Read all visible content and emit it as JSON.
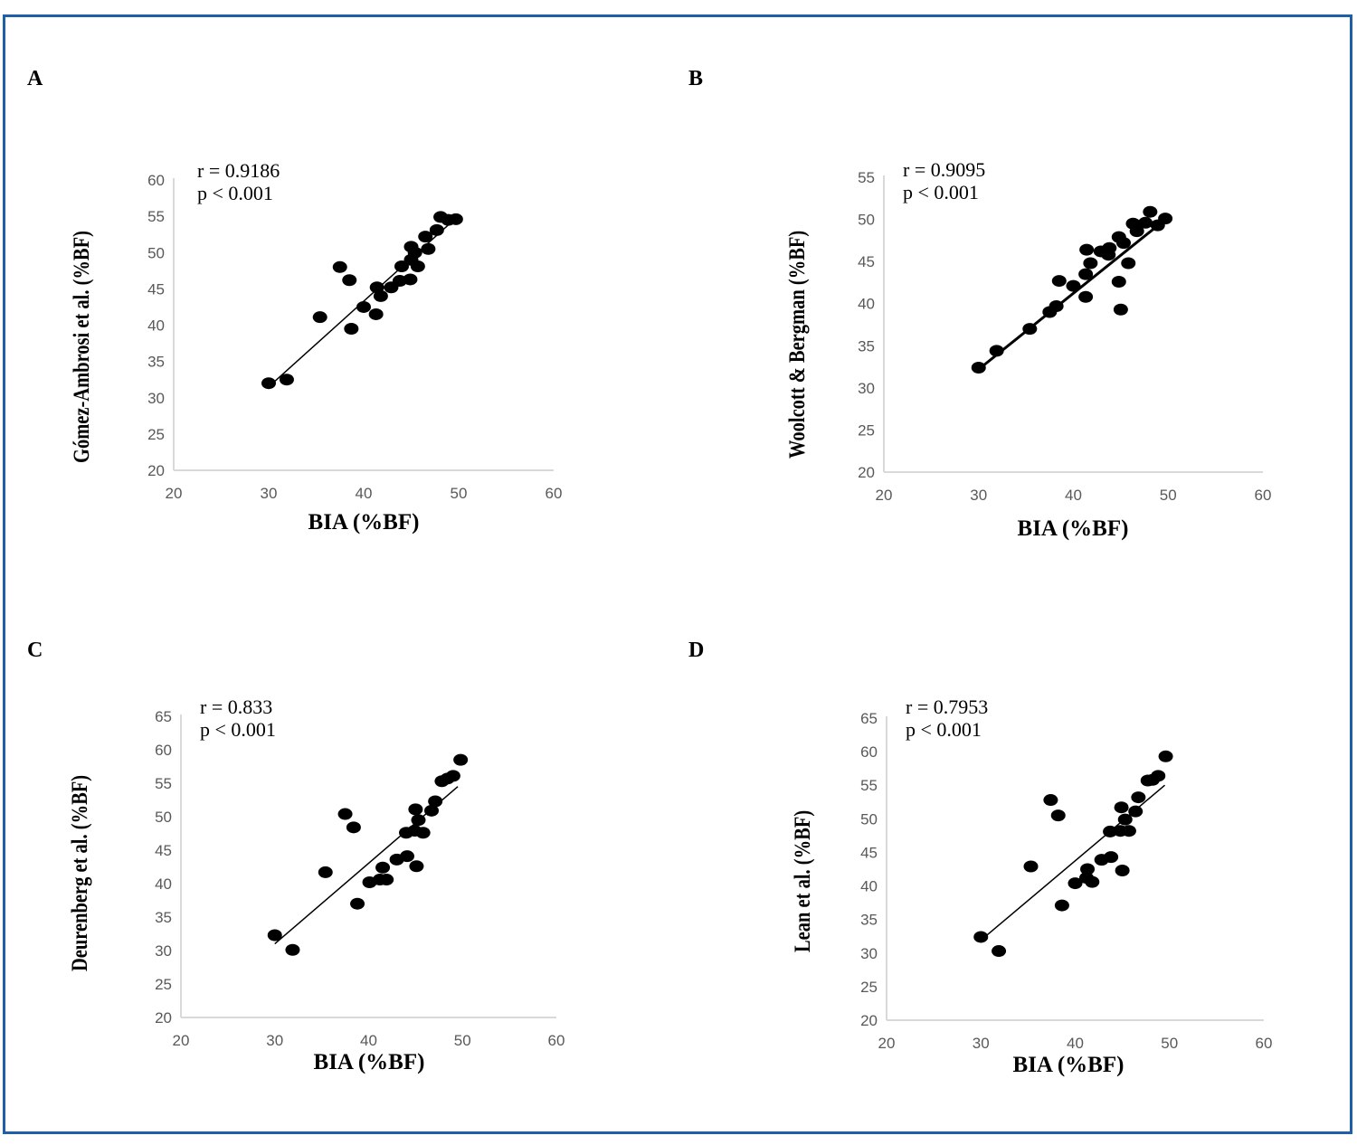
{
  "colors": {
    "frame": "#1f5fa8",
    "axis": "#d9d9d9",
    "tick": "#595959",
    "point": "#000000"
  },
  "chart_data": [
    {
      "panel": "A",
      "type": "scatter",
      "stat_r": "r = 0.9186",
      "stat_p": "p < 0.001",
      "xlabel": "BIA (%BF)",
      "ylabel": "Gómez-Ambrosi et al. (%BF)",
      "xlim": [
        20,
        60
      ],
      "ylim": [
        20,
        60
      ],
      "xticks": [
        20,
        30,
        40,
        50,
        60
      ],
      "yticks": [
        20,
        25,
        30,
        35,
        40,
        45,
        50,
        55,
        60
      ],
      "trendline": {
        "x": [
          30,
          49.5
        ],
        "y": [
          31.5,
          54.5
        ]
      },
      "points": [
        {
          "x": 30,
          "y": 32
        },
        {
          "x": 31.9,
          "y": 32.5
        },
        {
          "x": 35.4,
          "y": 41.1
        },
        {
          "x": 37.5,
          "y": 48
        },
        {
          "x": 38.5,
          "y": 46.2
        },
        {
          "x": 38.7,
          "y": 39.5
        },
        {
          "x": 40,
          "y": 42.5
        },
        {
          "x": 41.3,
          "y": 41.5
        },
        {
          "x": 41.4,
          "y": 45.2
        },
        {
          "x": 41.8,
          "y": 44
        },
        {
          "x": 42.9,
          "y": 45.2
        },
        {
          "x": 43.8,
          "y": 46.1
        },
        {
          "x": 44,
          "y": 48.1
        },
        {
          "x": 44.9,
          "y": 46.3
        },
        {
          "x": 45,
          "y": 49
        },
        {
          "x": 45,
          "y": 50.8
        },
        {
          "x": 45.4,
          "y": 50
        },
        {
          "x": 45.7,
          "y": 48.1
        },
        {
          "x": 46.5,
          "y": 52.2
        },
        {
          "x": 46.8,
          "y": 50.5
        },
        {
          "x": 47.7,
          "y": 53.1
        },
        {
          "x": 48.1,
          "y": 54.9
        },
        {
          "x": 48.9,
          "y": 54.5
        },
        {
          "x": 49.7,
          "y": 54.6
        }
      ]
    },
    {
      "panel": "B",
      "type": "scatter",
      "stat_r": "r = 0.9095",
      "stat_p": "p < 0.001",
      "xlabel": "BIA (%BF)",
      "ylabel": "Woolcott & Bergman (%BF)",
      "xlim": [
        20,
        60
      ],
      "ylim": [
        20,
        55
      ],
      "xticks": [
        20,
        30,
        40,
        50,
        60
      ],
      "yticks": [
        20,
        25,
        30,
        35,
        40,
        45,
        50,
        55
      ],
      "trendline": {
        "x": [
          30,
          49.5
        ],
        "y": [
          32.2,
          49.8
        ]
      },
      "points": [
        {
          "x": 30,
          "y": 32.4
        },
        {
          "x": 31.9,
          "y": 34.4
        },
        {
          "x": 35.4,
          "y": 37
        },
        {
          "x": 37.5,
          "y": 39
        },
        {
          "x": 38.2,
          "y": 39.7
        },
        {
          "x": 38.5,
          "y": 42.7
        },
        {
          "x": 40,
          "y": 42.1
        },
        {
          "x": 41.3,
          "y": 40.8
        },
        {
          "x": 41.3,
          "y": 43.5
        },
        {
          "x": 41.4,
          "y": 46.4
        },
        {
          "x": 41.8,
          "y": 44.8
        },
        {
          "x": 42.9,
          "y": 46.2
        },
        {
          "x": 43.7,
          "y": 45.8
        },
        {
          "x": 43.8,
          "y": 46.6
        },
        {
          "x": 44.8,
          "y": 47.9
        },
        {
          "x": 44.8,
          "y": 42.6
        },
        {
          "x": 45,
          "y": 39.3
        },
        {
          "x": 45.3,
          "y": 47.2
        },
        {
          "x": 45.8,
          "y": 44.8
        },
        {
          "x": 46.3,
          "y": 49.5
        },
        {
          "x": 46.7,
          "y": 48.6
        },
        {
          "x": 47.6,
          "y": 49.6
        },
        {
          "x": 48.1,
          "y": 50.9
        },
        {
          "x": 48.9,
          "y": 49.3
        },
        {
          "x": 49.7,
          "y": 50.1
        }
      ]
    },
    {
      "panel": "C",
      "type": "scatter",
      "stat_r": "r = 0.833",
      "stat_p": "p < 0.001",
      "xlabel": "BIA (%BF)",
      "ylabel": "Deurenberg et al. (%BF)",
      "xlim": [
        20,
        60
      ],
      "ylim": [
        20,
        65
      ],
      "xticks": [
        20,
        30,
        40,
        50,
        60
      ],
      "yticks": [
        20,
        25,
        30,
        35,
        40,
        45,
        50,
        55,
        60,
        65
      ],
      "trendline": {
        "x": [
          30,
          49.5
        ],
        "y": [
          31,
          54.5
        ]
      },
      "points": [
        {
          "x": 30,
          "y": 32.3
        },
        {
          "x": 31.9,
          "y": 30.1
        },
        {
          "x": 35.4,
          "y": 41.7
        },
        {
          "x": 37.5,
          "y": 50.4
        },
        {
          "x": 38.4,
          "y": 48.4
        },
        {
          "x": 38.8,
          "y": 37
        },
        {
          "x": 40.1,
          "y": 40.2
        },
        {
          "x": 41.2,
          "y": 40.6
        },
        {
          "x": 41.5,
          "y": 42.4
        },
        {
          "x": 41.9,
          "y": 40.6
        },
        {
          "x": 43,
          "y": 43.6
        },
        {
          "x": 44.1,
          "y": 44.1
        },
        {
          "x": 44,
          "y": 47.6
        },
        {
          "x": 44.9,
          "y": 47.9
        },
        {
          "x": 45.1,
          "y": 42.6
        },
        {
          "x": 45,
          "y": 51.1
        },
        {
          "x": 45.3,
          "y": 49.5
        },
        {
          "x": 45.8,
          "y": 47.6
        },
        {
          "x": 46.7,
          "y": 50.9
        },
        {
          "x": 47.1,
          "y": 52.3
        },
        {
          "x": 47.8,
          "y": 55.3
        },
        {
          "x": 48.4,
          "y": 55.7
        },
        {
          "x": 49,
          "y": 56.1
        },
        {
          "x": 49.8,
          "y": 58.5
        }
      ]
    },
    {
      "panel": "D",
      "type": "scatter",
      "stat_r": "r = 0.7953",
      "stat_p": "p < 0.001",
      "xlabel": "BIA (%BF)",
      "ylabel": "Lean et al. (%BF)",
      "xlim": [
        20,
        60
      ],
      "ylim": [
        20,
        65
      ],
      "xticks": [
        20,
        30,
        40,
        50,
        60
      ],
      "yticks": [
        20,
        25,
        30,
        35,
        40,
        45,
        50,
        55,
        60,
        65
      ],
      "trendline": {
        "x": [
          30.5,
          49.5
        ],
        "y": [
          32.5,
          55
        ]
      },
      "points": [
        {
          "x": 30,
          "y": 32.4
        },
        {
          "x": 31.9,
          "y": 30.3
        },
        {
          "x": 35.3,
          "y": 42.9
        },
        {
          "x": 37.4,
          "y": 52.8
        },
        {
          "x": 38.2,
          "y": 50.5
        },
        {
          "x": 38.6,
          "y": 37.1
        },
        {
          "x": 40,
          "y": 40.4
        },
        {
          "x": 41.2,
          "y": 41.2
        },
        {
          "x": 41.3,
          "y": 42.5
        },
        {
          "x": 41.8,
          "y": 40.6
        },
        {
          "x": 42.8,
          "y": 43.9
        },
        {
          "x": 43.8,
          "y": 44.3
        },
        {
          "x": 43.7,
          "y": 48.1
        },
        {
          "x": 44.8,
          "y": 48.2
        },
        {
          "x": 45,
          "y": 42.3
        },
        {
          "x": 44.9,
          "y": 51.7
        },
        {
          "x": 45.3,
          "y": 49.9
        },
        {
          "x": 45.7,
          "y": 48.2
        },
        {
          "x": 46.4,
          "y": 51.1
        },
        {
          "x": 46.7,
          "y": 53.2
        },
        {
          "x": 47.7,
          "y": 55.7
        },
        {
          "x": 48.2,
          "y": 55.8
        },
        {
          "x": 48.8,
          "y": 56.4
        },
        {
          "x": 49.6,
          "y": 59.3
        }
      ]
    }
  ]
}
